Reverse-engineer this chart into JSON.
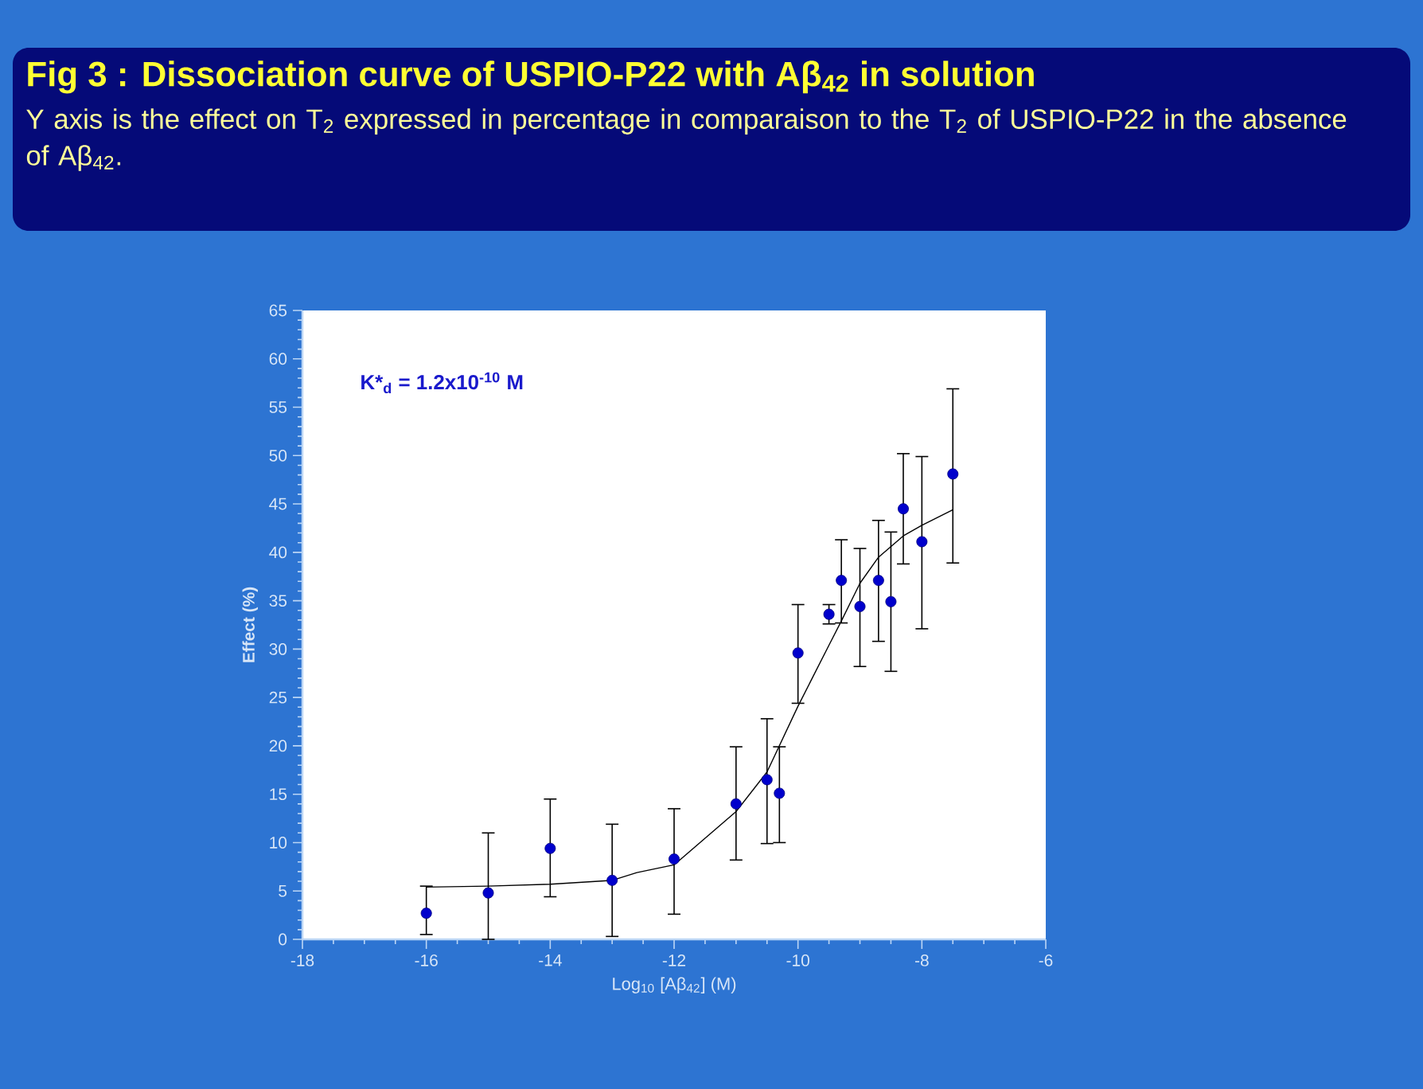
{
  "chart_data": {
    "type": "scatter",
    "title": "Fig 3 : Dissociation curve of USPIO-P22 with Aβ$_{42}$ in solution",
    "subtitle": "Y axis is the effect on T$_{2}$ expressed in percentage in comparaison to the T$_{2}$ of USPIO-P22 in the absence of Aβ$_{42}$.",
    "xlabel": "Log$_{10}$ [Aβ$_{42}$] (M)",
    "ylabel": "Effect (%)",
    "annotations": [
      "K*$_{d}$ = 1.2x10$^{-10}$ M"
    ],
    "xlim": [
      -18,
      -6
    ],
    "xticks": [
      -18,
      -16,
      -14,
      -12,
      -10,
      -8,
      -6
    ],
    "ylim": [
      0,
      65
    ],
    "yticks": [
      0,
      5,
      10,
      15,
      20,
      25,
      30,
      35,
      40,
      45,
      50,
      55,
      60,
      65
    ],
    "series": [
      {
        "type": "scatter",
        "color": "#0000cc",
        "marker": "circle",
        "x": [
          -16,
          -15,
          -14,
          -13,
          -12,
          -11,
          -10.5,
          -10.3,
          -10,
          -9.5,
          -9.3,
          -9,
          -8.7,
          -8.5,
          -8.3,
          -8,
          -7.5
        ],
        "values": [
          2.7,
          4.8,
          9.4,
          6.1,
          8.3,
          14.0,
          16.5,
          15.1,
          29.6,
          33.6,
          37.1,
          34.4,
          37.1,
          34.9,
          44.5,
          41.1,
          48.1
        ],
        "errors": [
          [
            0.5,
            5.5
          ],
          [
            0,
            11
          ],
          [
            4.4,
            14.5
          ],
          [
            0.3,
            11.9
          ],
          [
            2.6,
            13.5
          ],
          [
            8.2,
            19.9
          ],
          [
            9.9,
            22.8
          ],
          [
            10,
            19.9
          ],
          [
            24.4,
            34.6
          ],
          [
            32.6,
            34.6
          ],
          [
            32.7,
            41.3
          ],
          [
            28.2,
            40.4
          ],
          [
            30.8,
            43.3
          ],
          [
            27.7,
            42.1
          ],
          [
            38.8,
            50.2
          ],
          [
            32.1,
            49.9
          ],
          [
            38.9,
            56.9
          ]
        ]
      },
      {
        "type": "line",
        "color": "#000000",
        "marker": "none",
        "line_style": "solid",
        "x": [
          -16,
          -15,
          -14,
          -13,
          -12.6,
          -12,
          -11,
          -10.5,
          -10,
          -9.5,
          -9.3,
          -9,
          -8.7,
          -8.3,
          -8,
          -7.5
        ],
        "values": [
          5.4,
          5.5,
          5.7,
          6.1,
          6.9,
          7.7,
          13.2,
          17.3,
          24.1,
          30.4,
          32.9,
          36.8,
          39.5,
          41.7,
          42.8,
          44.4
        ]
      }
    ]
  }
}
